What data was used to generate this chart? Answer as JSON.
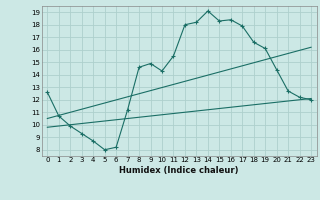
{
  "xlabel": "Humidex (Indice chaleur)",
  "background_color": "#cce8e5",
  "grid_color": "#aed0cc",
  "line_color": "#1a6e65",
  "xlim": [
    -0.5,
    23.5
  ],
  "ylim": [
    7.5,
    19.5
  ],
  "xticks": [
    0,
    1,
    2,
    3,
    4,
    5,
    6,
    7,
    8,
    9,
    10,
    11,
    12,
    13,
    14,
    15,
    16,
    17,
    18,
    19,
    20,
    21,
    22,
    23
  ],
  "yticks": [
    8,
    9,
    10,
    11,
    12,
    13,
    14,
    15,
    16,
    17,
    18,
    19
  ],
  "series0_x": [
    0,
    1,
    2,
    3,
    4,
    5,
    6,
    7,
    8,
    9,
    10,
    11,
    12,
    13,
    14,
    15,
    16,
    17,
    18,
    19,
    20,
    21,
    22,
    23
  ],
  "series0_y": [
    12.6,
    10.7,
    9.9,
    9.3,
    8.7,
    8.0,
    8.2,
    11.2,
    14.6,
    14.9,
    14.3,
    15.5,
    18.0,
    18.2,
    19.1,
    18.3,
    18.4,
    17.9,
    16.6,
    16.1,
    14.4,
    12.7,
    12.2,
    12.0
  ],
  "line1_x": [
    0,
    23
  ],
  "line1_y": [
    10.5,
    16.2
  ],
  "line2_x": [
    0,
    23
  ],
  "line2_y": [
    9.8,
    12.1
  ]
}
